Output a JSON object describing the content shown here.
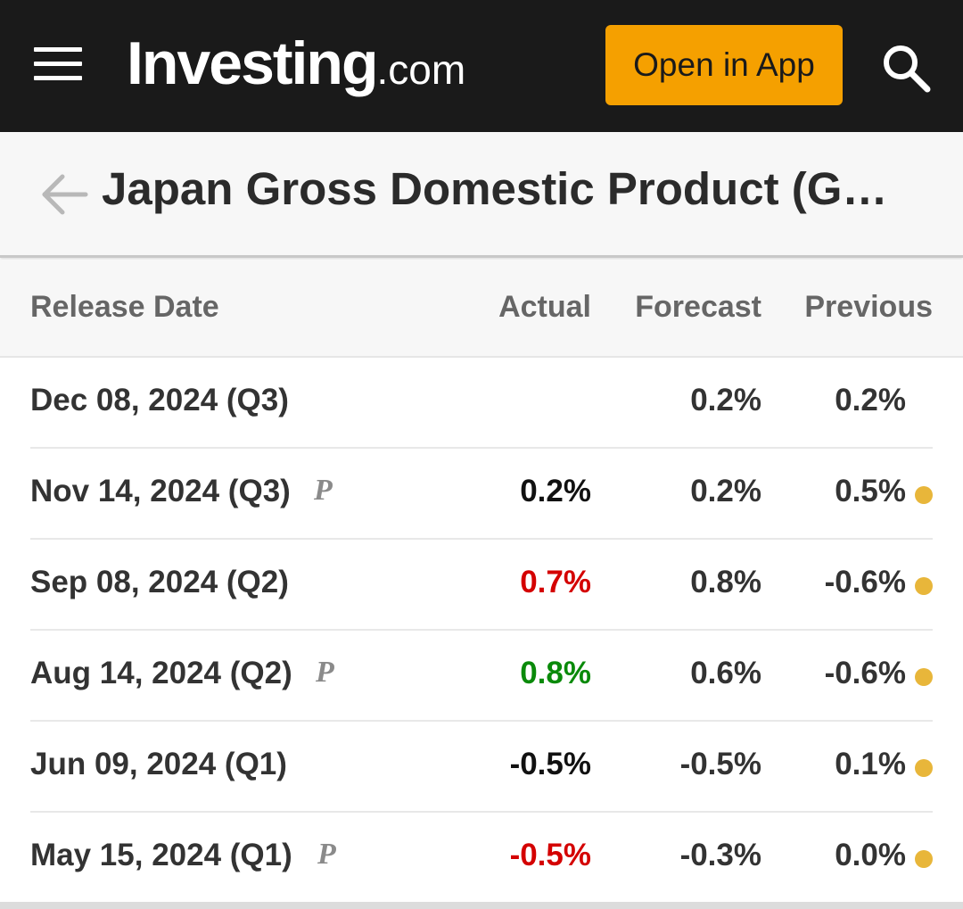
{
  "header": {
    "logo_main": "Investing",
    "logo_tld": ".com",
    "open_app_label": "Open in App",
    "menu_icon": "hamburger-menu-icon",
    "search_icon": "search-icon"
  },
  "title_bar": {
    "back_icon": "arrow-left-icon",
    "title": "Japan Gross Domestic Product (G…"
  },
  "table": {
    "columns": [
      "Release Date",
      "Actual",
      "Forecast",
      "Previous"
    ],
    "rows": [
      {
        "date": "Dec 08, 2024 (Q3)",
        "preliminary": "",
        "actual": "",
        "actual_color": "#111111",
        "forecast": "0.2%",
        "previous": "0.2%",
        "revised": false
      },
      {
        "date": "Nov 14, 2024 (Q3)",
        "preliminary": "P",
        "actual": "0.2%",
        "actual_color": "#111111",
        "forecast": "0.2%",
        "previous": "0.5%",
        "revised": true
      },
      {
        "date": "Sep 08, 2024 (Q2)",
        "preliminary": "",
        "actual": "0.7%",
        "actual_color": "#d40000",
        "forecast": "0.8%",
        "previous": "-0.6%",
        "revised": true
      },
      {
        "date": "Aug 14, 2024 (Q2)",
        "preliminary": "P",
        "actual": "0.8%",
        "actual_color": "#0a8a0a",
        "forecast": "0.6%",
        "previous": "-0.6%",
        "revised": true
      },
      {
        "date": "Jun 09, 2024 (Q1)",
        "preliminary": "",
        "actual": "-0.5%",
        "actual_color": "#111111",
        "forecast": "-0.5%",
        "previous": "0.1%",
        "revised": true
      },
      {
        "date": "May 15, 2024 (Q1)",
        "preliminary": "P",
        "actual": "-0.5%",
        "actual_color": "#d40000",
        "forecast": "-0.3%",
        "previous": "0.0%",
        "revised": true
      }
    ]
  },
  "colors": {
    "topbar_bg": "#1a1a1a",
    "accent": "#f5a000",
    "revised_dot": "#e8b63a",
    "negative": "#d40000",
    "positive": "#0a8a0a"
  }
}
